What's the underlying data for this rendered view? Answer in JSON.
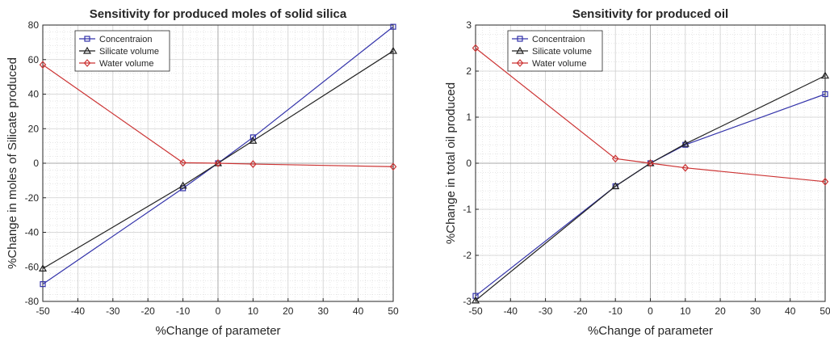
{
  "chart_data": [
    {
      "type": "line",
      "title": "Sensitivity for produced moles of solid silica",
      "xlabel": "%Change of parameter",
      "ylabel": "%Change in moles of Silicate produced",
      "xlim": [
        -50,
        50
      ],
      "ylim": [
        -80,
        80
      ],
      "xticks": [
        -50,
        -40,
        -30,
        -20,
        -10,
        0,
        10,
        20,
        30,
        40,
        50
      ],
      "yticks": [
        -80,
        -60,
        -40,
        -20,
        0,
        20,
        40,
        60,
        80
      ],
      "grid": true,
      "legend_position": "top-left",
      "x": [
        -50,
        -10,
        0,
        10,
        50
      ],
      "series": [
        {
          "name": "Concentraion",
          "marker": "square",
          "color": "#3333aa",
          "values": [
            -70,
            -14.5,
            0,
            15,
            79
          ]
        },
        {
          "name": "Silicate volume",
          "marker": "triangle",
          "color": "#222222",
          "values": [
            -61,
            -13,
            0,
            13,
            65
          ]
        },
        {
          "name": "Water volume",
          "marker": "diamond",
          "color": "#cc3333",
          "values": [
            57,
            0.3,
            0,
            -0.5,
            -2
          ]
        }
      ]
    },
    {
      "type": "line",
      "title": "Sensitivity for produced oil",
      "xlabel": "%Change of parameter",
      "ylabel": "%Change in  total oil produced",
      "xlim": [
        -50,
        50
      ],
      "ylim": [
        -3,
        3
      ],
      "xticks": [
        -50,
        -40,
        -30,
        -20,
        -10,
        0,
        10,
        20,
        30,
        40,
        50
      ],
      "yticks": [
        -3,
        -2,
        -1,
        0,
        1,
        2,
        3
      ],
      "grid": true,
      "legend_position": "top-left",
      "x": [
        -50,
        -10,
        0,
        10,
        50
      ],
      "series": [
        {
          "name": "Concentraion",
          "marker": "square",
          "color": "#3333aa",
          "values": [
            -2.88,
            -0.5,
            0,
            0.4,
            1.5
          ]
        },
        {
          "name": "Silicate volume",
          "marker": "triangle",
          "color": "#222222",
          "values": [
            -2.98,
            -0.5,
            0,
            0.42,
            1.9
          ]
        },
        {
          "name": "Water volume",
          "marker": "diamond",
          "color": "#cc3333",
          "values": [
            2.5,
            0.1,
            0,
            -0.1,
            -0.4
          ]
        }
      ]
    }
  ]
}
